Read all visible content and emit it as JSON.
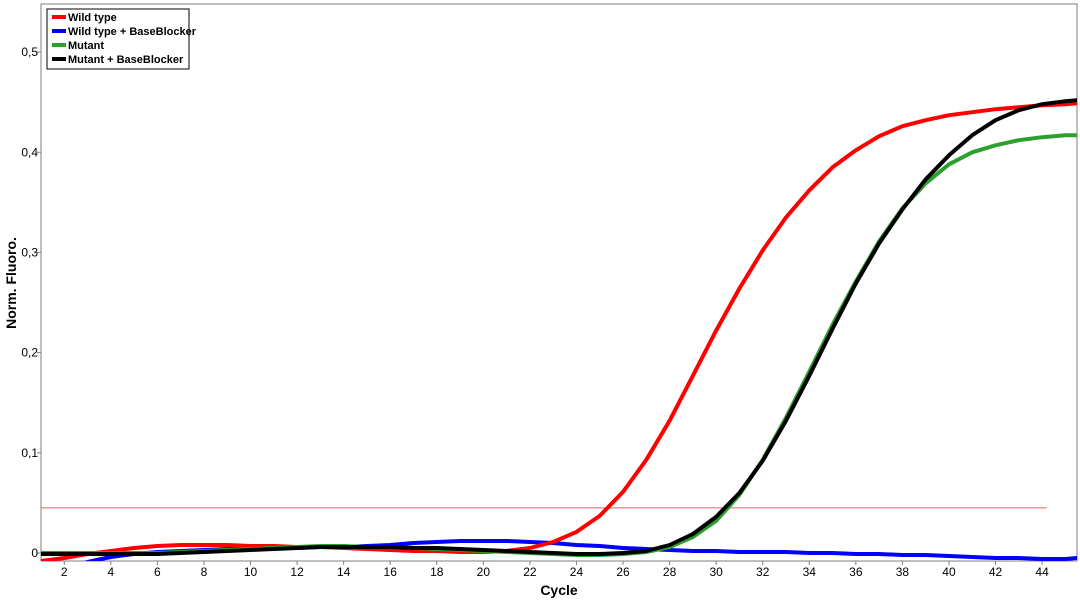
{
  "chart_data": {
    "type": "line",
    "title": "",
    "xlabel": "Cycle",
    "ylabel": "Norm. Fluoro.",
    "xlim": [
      1,
      45.5
    ],
    "ylim": [
      -0.008,
      0.548
    ],
    "xticks": [
      2,
      4,
      6,
      8,
      10,
      12,
      14,
      16,
      18,
      20,
      22,
      24,
      26,
      28,
      30,
      32,
      34,
      36,
      38,
      40,
      42,
      44
    ],
    "yticks": [
      0,
      0.1,
      0.2,
      0.3,
      0.4,
      0.5
    ],
    "ytick_labels": [
      "0",
      "0,1",
      "0,2",
      "0,3",
      "0,4",
      "0,5"
    ],
    "grid": false,
    "legend_position": "top-left",
    "threshold": {
      "y": 0.045,
      "x_start": 1,
      "x_end": 44.2,
      "color": "#e06060"
    },
    "x": [
      1,
      2,
      3,
      4,
      5,
      6,
      7,
      8,
      9,
      10,
      11,
      12,
      13,
      14,
      15,
      16,
      17,
      18,
      19,
      20,
      21,
      22,
      23,
      24,
      25,
      26,
      27,
      28,
      29,
      30,
      31,
      32,
      33,
      34,
      35,
      36,
      37,
      38,
      39,
      40,
      41,
      42,
      43,
      44,
      45,
      45.5
    ],
    "series": [
      {
        "name": "Wild type",
        "color": "#ff0000",
        "values": [
          -0.008,
          -0.005,
          -0.001,
          0.002,
          0.005,
          0.007,
          0.008,
          0.008,
          0.008,
          0.007,
          0.007,
          0.006,
          0.006,
          0.005,
          0.004,
          0.003,
          0.002,
          0.002,
          0.001,
          0.001,
          0.002,
          0.005,
          0.011,
          0.021,
          0.037,
          0.061,
          0.093,
          0.132,
          0.177,
          0.222,
          0.264,
          0.302,
          0.335,
          0.362,
          0.385,
          0.402,
          0.416,
          0.426,
          0.432,
          0.437,
          0.44,
          0.443,
          0.445,
          0.447,
          0.448,
          0.449
        ]
      },
      {
        "name": "Wild type + BaseBlocker",
        "color": "#0000ff",
        "values": [
          -0.02,
          -0.015,
          -0.009,
          -0.004,
          -0.001,
          0.001,
          0.002,
          0.003,
          0.004,
          0.004,
          0.005,
          0.005,
          0.006,
          0.006,
          0.007,
          0.008,
          0.01,
          0.011,
          0.012,
          0.012,
          0.012,
          0.011,
          0.01,
          0.008,
          0.007,
          0.005,
          0.004,
          0.003,
          0.002,
          0.002,
          0.001,
          0.001,
          0.001,
          0.0,
          0.0,
          -0.001,
          -0.001,
          -0.002,
          -0.002,
          -0.003,
          -0.004,
          -0.005,
          -0.005,
          -0.006,
          -0.006,
          -0.005
        ]
      },
      {
        "name": "Mutant",
        "color": "#2ca02c",
        "values": [
          0.0,
          0.0,
          0.0,
          0.0,
          0.0,
          0.0,
          0.001,
          0.002,
          0.003,
          0.004,
          0.005,
          0.006,
          0.007,
          0.007,
          0.006,
          0.006,
          0.005,
          0.004,
          0.003,
          0.002,
          0.001,
          0.0,
          -0.001,
          -0.002,
          -0.002,
          -0.001,
          0.001,
          0.006,
          0.016,
          0.032,
          0.058,
          0.093,
          0.135,
          0.181,
          0.228,
          0.271,
          0.311,
          0.344,
          0.369,
          0.388,
          0.4,
          0.407,
          0.412,
          0.415,
          0.417,
          0.417
        ]
      },
      {
        "name": "Mutant + BaseBlocker",
        "color": "#000000",
        "values": [
          -0.001,
          -0.001,
          -0.001,
          -0.001,
          -0.001,
          -0.001,
          0.0,
          0.001,
          0.002,
          0.003,
          0.004,
          0.005,
          0.006,
          0.006,
          0.006,
          0.006,
          0.005,
          0.005,
          0.004,
          0.003,
          0.002,
          0.001,
          0.0,
          -0.001,
          -0.001,
          0.0,
          0.002,
          0.008,
          0.019,
          0.036,
          0.06,
          0.092,
          0.132,
          0.177,
          0.224,
          0.269,
          0.309,
          0.343,
          0.373,
          0.397,
          0.417,
          0.432,
          0.442,
          0.448,
          0.451,
          0.452
        ]
      }
    ]
  }
}
